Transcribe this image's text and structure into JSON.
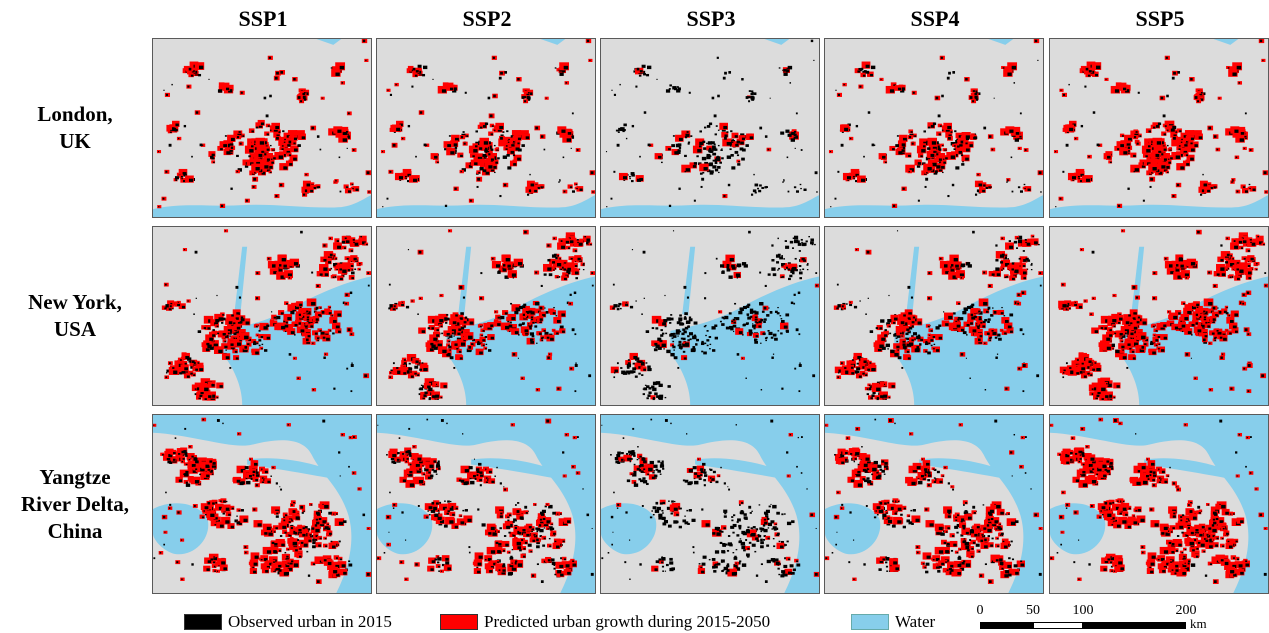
{
  "columns": [
    "SSP1",
    "SSP2",
    "SSP3",
    "SSP4",
    "SSP5"
  ],
  "rows": [
    {
      "lines": [
        "London,",
        "UK"
      ]
    },
    {
      "lines": [
        "New York,",
        "USA"
      ]
    },
    {
      "lines": [
        "Yangtze",
        "River Delta,",
        "China"
      ]
    }
  ],
  "legend": [
    {
      "label": "Observed urban in 2015",
      "color": "#000000"
    },
    {
      "label": "Predicted urban growth during 2015-2050",
      "color": "#ff0000"
    },
    {
      "label": "Water",
      "color": "#87ceeb"
    }
  ],
  "colors": {
    "land": "#dcdcdc",
    "water": "#87ceeb",
    "urban": "#000000",
    "growth": "#ff0000"
  },
  "scale": {
    "ticks": [
      "0",
      "50",
      "100",
      "200"
    ],
    "unit": "km"
  },
  "growth_level": [
    0.75,
    0.6,
    0.12,
    0.55,
    0.95
  ]
}
